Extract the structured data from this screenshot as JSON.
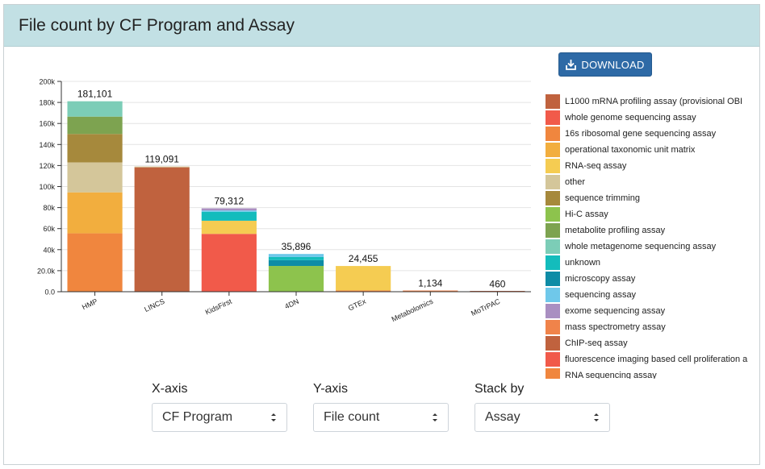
{
  "header": {
    "title": "File count by CF Program and Assay"
  },
  "toolbar": {
    "download_label": "DOWNLOAD"
  },
  "controls": {
    "x_axis": {
      "label": "X-axis",
      "value": "CF Program"
    },
    "y_axis": {
      "label": "Y-axis",
      "value": "File count"
    },
    "stack_by": {
      "label": "Stack by",
      "value": "Assay"
    }
  },
  "legend": {
    "items": [
      {
        "label": "L1000 mRNA profiling assay (provisional OBI",
        "color": "#c0623e"
      },
      {
        "label": "whole genome sequencing assay",
        "color": "#f15a4a"
      },
      {
        "label": "16s ribosomal gene sequencing assay",
        "color": "#f0863e"
      },
      {
        "label": "operational taxonomic unit matrix",
        "color": "#f2ae3e"
      },
      {
        "label": "RNA-seq assay",
        "color": "#f5cc52"
      },
      {
        "label": "other",
        "color": "#d4c69a"
      },
      {
        "label": "sequence trimming",
        "color": "#a6893c"
      },
      {
        "label": "Hi-C assay",
        "color": "#8dc34d"
      },
      {
        "label": "metabolite profiling assay",
        "color": "#7da350"
      },
      {
        "label": "whole metagenome sequencing assay",
        "color": "#7ccdb7"
      },
      {
        "label": "unknown",
        "color": "#13bcbc"
      },
      {
        "label": "microscopy assay",
        "color": "#0e8ca6"
      },
      {
        "label": "sequencing assay",
        "color": "#6fc8ea"
      },
      {
        "label": "exome sequencing assay",
        "color": "#a98fc1"
      },
      {
        "label": "mass spectrometry assay",
        "color": "#f0834a"
      },
      {
        "label": "ChIP-seq assay",
        "color": "#c0623e"
      },
      {
        "label": "fluorescence imaging based cell proliferation a",
        "color": "#f15a4a"
      },
      {
        "label": "RNA sequencing assay",
        "color": "#f0863e"
      }
    ]
  },
  "chart_data": {
    "type": "bar",
    "stacked": true,
    "ylim": [
      0,
      200000
    ],
    "yticks": [
      0,
      20000,
      40000,
      60000,
      80000,
      100000,
      120000,
      140000,
      160000,
      180000,
      200000
    ],
    "ytick_labels": [
      "0.0",
      "20.0k",
      "40k",
      "60k",
      "80k",
      "100k",
      "120k",
      "140k",
      "160k",
      "180k",
      "200k"
    ],
    "grid": true,
    "legend_position": "right",
    "categories": [
      "HMP",
      "LINCS",
      "KidsFirst",
      "4DN",
      "GTEx",
      "Metabolomics",
      "MoTrPAC"
    ],
    "totals": [
      181101,
      119091,
      79312,
      35896,
      24455,
      1134,
      460
    ],
    "total_labels": [
      "181,101",
      "119,091",
      "79,312",
      "35,896",
      "24,455",
      "1,134",
      "460"
    ],
    "stacks": [
      [
        {
          "assay": "16s ribosomal gene sequencing assay",
          "value": 55500
        },
        {
          "assay": "operational taxonomic unit matrix",
          "value": 39000
        },
        {
          "assay": "other",
          "value": 28500
        },
        {
          "assay": "sequence trimming",
          "value": 27000
        },
        {
          "assay": "metabolite profiling assay",
          "value": 16500
        },
        {
          "assay": "whole metagenome sequencing assay",
          "value": 14601
        }
      ],
      [
        {
          "assay": "L1000 mRNA profiling assay (provisional OBI",
          "value": 118300
        },
        {
          "assay": "other",
          "value": 791
        }
      ],
      [
        {
          "assay": "whole genome sequencing assay",
          "value": 55000
        },
        {
          "assay": "RNA-seq assay",
          "value": 12500
        },
        {
          "assay": "unknown",
          "value": 8500
        },
        {
          "assay": "sequencing assay",
          "value": 1300
        },
        {
          "assay": "exome sequencing assay",
          "value": 2012
        }
      ],
      [
        {
          "assay": "Hi-C assay",
          "value": 24500
        },
        {
          "assay": "microscopy assay",
          "value": 5500
        },
        {
          "assay": "unknown",
          "value": 3000
        },
        {
          "assay": "sequencing assay",
          "value": 2896
        }
      ],
      [
        {
          "assay": "mass spectrometry assay",
          "value": 1200
        },
        {
          "assay": "RNA-seq assay",
          "value": 23255
        }
      ],
      [
        {
          "assay": "mass spectrometry assay",
          "value": 1134
        }
      ],
      [
        {
          "assay": "ChIP-seq assay",
          "value": 460
        }
      ]
    ]
  }
}
